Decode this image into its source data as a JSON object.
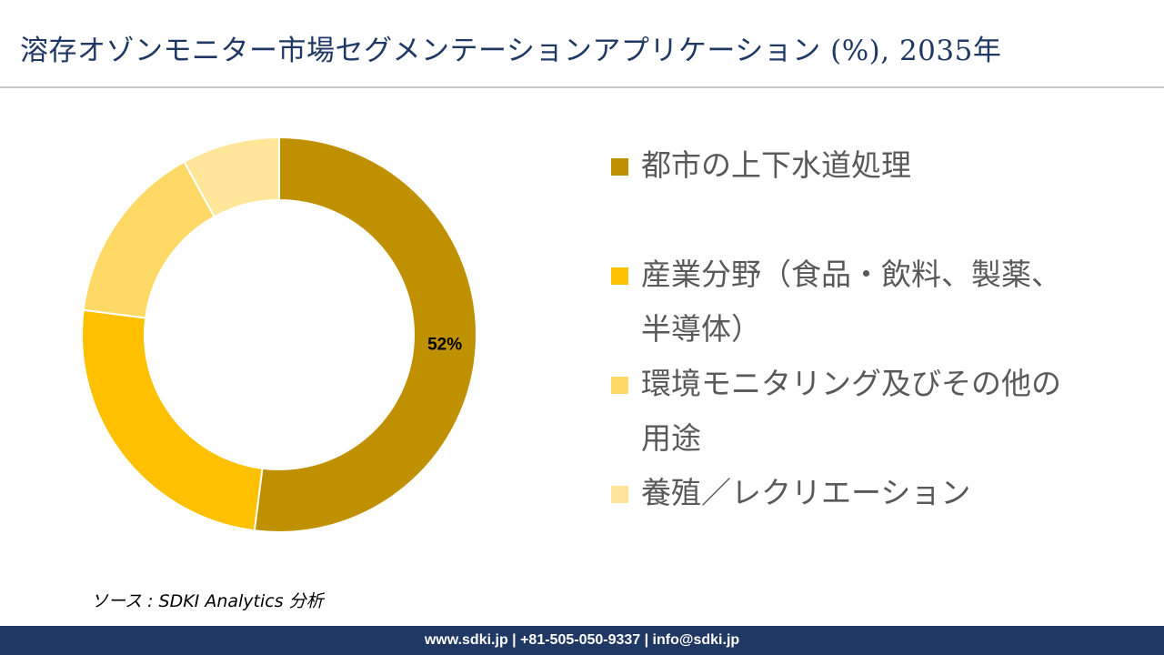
{
  "title": "溶存オゾンモニター市場セグメンテーションアプリケーション (%), 2035年",
  "source": "ソース : SDKI Analytics 分析",
  "footer": "www.sdki.jp | +81-505-050-9337 | info@sdki.jp",
  "colors": {
    "title": "#1f3864",
    "footer_bg": "#1f3864",
    "series": [
      "#bf9000",
      "#ffc000",
      "#ffd966",
      "#ffe699"
    ]
  },
  "chart_data": {
    "type": "pie",
    "variant": "donut",
    "categories": [
      "都市の上下水道処理",
      "産業分野（食品・飲料、製薬、半導体）",
      "環境モニタリング及びその他の用途",
      "養殖／レクリエーション"
    ],
    "values": [
      52,
      25,
      15,
      8
    ],
    "data_labels": [
      "52%",
      "",
      "",
      ""
    ],
    "legend_position": "right"
  }
}
